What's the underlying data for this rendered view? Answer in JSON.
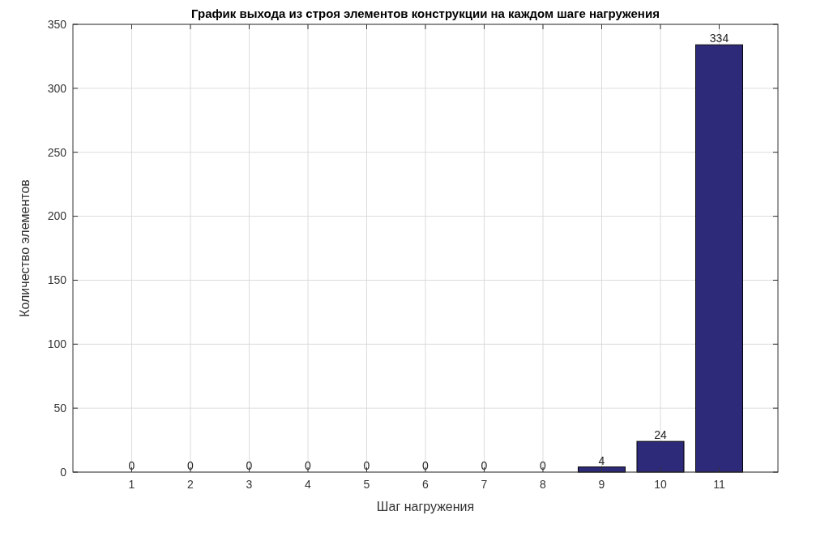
{
  "chart_data": {
    "type": "bar",
    "title": "График выхода из строя элементов конструкции на каждом шаге нагружения",
    "xlabel": "Шаг нагружения",
    "ylabel": "Количество элементов",
    "categories": [
      "1",
      "2",
      "3",
      "4",
      "5",
      "6",
      "7",
      "8",
      "9",
      "10",
      "11"
    ],
    "values": [
      0,
      0,
      0,
      0,
      0,
      0,
      0,
      0,
      4,
      24,
      334
    ],
    "color": "#2e2a7a",
    "ylim": [
      0,
      350
    ],
    "yticks": [
      0,
      50,
      100,
      150,
      200,
      250,
      300,
      350
    ],
    "grid": true,
    "data_labels": true
  }
}
